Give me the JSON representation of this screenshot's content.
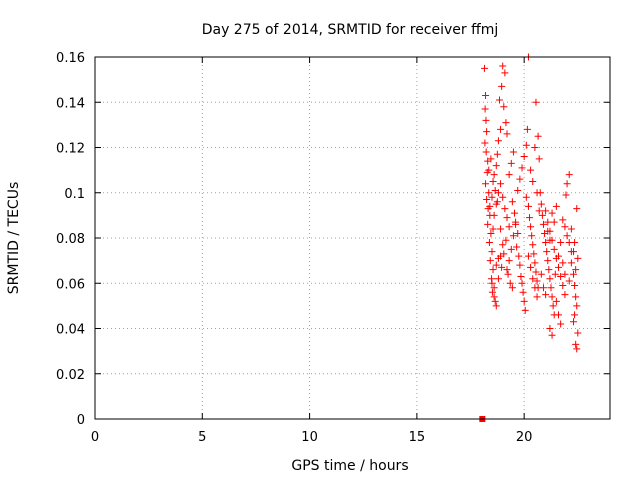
{
  "chart_data": {
    "type": "scatter",
    "title": "Day 275 of 2014, SRMTID for receiver ffmj",
    "xlabel": "GPS time / hours",
    "ylabel": "SRMTID / TECUs",
    "xlim": [
      0,
      24
    ],
    "ylim": [
      0,
      0.16
    ],
    "x_ticks": [
      0,
      5,
      10,
      15,
      20
    ],
    "x_tick_labels": [
      "0",
      "5",
      "10",
      "15",
      "20"
    ],
    "y_ticks": [
      0,
      0.02,
      0.04,
      0.06,
      0.08,
      0.1,
      0.12,
      0.14,
      0.16
    ],
    "y_tick_labels": [
      "0",
      "0.02",
      "0.04",
      "0.06",
      "0.08",
      "0.1",
      "0.12",
      "0.14",
      "0.16"
    ],
    "grid": true,
    "marker": "+",
    "color": "#ff0000",
    "zero_marker": {
      "x": 18.05,
      "y": 0
    },
    "points": [
      [
        18.15,
        0.155
      ],
      [
        18.2,
        0.143
      ],
      [
        18.18,
        0.137
      ],
      [
        18.22,
        0.132
      ],
      [
        18.25,
        0.127
      ],
      [
        18.17,
        0.122
      ],
      [
        18.23,
        0.118
      ],
      [
        18.3,
        0.114
      ],
      [
        18.28,
        0.109
      ],
      [
        18.2,
        0.104
      ],
      [
        18.35,
        0.1
      ],
      [
        18.25,
        0.097
      ],
      [
        18.32,
        0.093
      ],
      [
        18.4,
        0.09
      ],
      [
        18.3,
        0.086
      ],
      [
        18.45,
        0.082
      ],
      [
        18.38,
        0.078
      ],
      [
        18.5,
        0.074
      ],
      [
        18.42,
        0.07
      ],
      [
        18.55,
        0.066
      ],
      [
        18.48,
        0.062
      ],
      [
        18.6,
        0.058
      ],
      [
        18.52,
        0.056
      ],
      [
        18.65,
        0.052
      ],
      [
        18.7,
        0.05
      ],
      [
        18.4,
        0.094
      ],
      [
        18.5,
        0.098
      ],
      [
        18.6,
        0.108
      ],
      [
        18.7,
        0.112
      ],
      [
        18.55,
        0.084
      ],
      [
        18.75,
        0.117
      ],
      [
        18.8,
        0.123
      ],
      [
        18.9,
        0.128
      ],
      [
        18.85,
        0.141
      ],
      [
        18.95,
        0.147
      ],
      [
        19.0,
        0.156
      ],
      [
        19.1,
        0.153
      ],
      [
        19.05,
        0.138
      ],
      [
        19.15,
        0.131
      ],
      [
        19.2,
        0.126
      ],
      [
        18.9,
        0.104
      ],
      [
        19.0,
        0.098
      ],
      [
        19.1,
        0.093
      ],
      [
        19.2,
        0.089
      ],
      [
        19.3,
        0.085
      ],
      [
        18.8,
        0.071
      ],
      [
        18.95,
        0.067
      ],
      [
        19.05,
        0.073
      ],
      [
        19.15,
        0.079
      ],
      [
        19.25,
        0.064
      ],
      [
        19.35,
        0.06
      ],
      [
        19.45,
        0.058
      ],
      [
        19.3,
        0.108
      ],
      [
        19.4,
        0.113
      ],
      [
        19.5,
        0.118
      ],
      [
        19.45,
        0.096
      ],
      [
        19.55,
        0.091
      ],
      [
        19.6,
        0.087
      ],
      [
        19.7,
        0.082
      ],
      [
        19.65,
        0.076
      ],
      [
        19.75,
        0.072
      ],
      [
        19.8,
        0.068
      ],
      [
        19.85,
        0.063
      ],
      [
        19.9,
        0.06
      ],
      [
        19.95,
        0.056
      ],
      [
        20.0,
        0.052
      ],
      [
        20.05,
        0.048
      ],
      [
        19.7,
        0.101
      ],
      [
        19.8,
        0.106
      ],
      [
        19.9,
        0.111
      ],
      [
        20.0,
        0.116
      ],
      [
        20.1,
        0.121
      ],
      [
        20.15,
        0.128
      ],
      [
        20.2,
        0.16
      ],
      [
        20.1,
        0.098
      ],
      [
        20.2,
        0.094
      ],
      [
        20.25,
        0.089
      ],
      [
        20.3,
        0.085
      ],
      [
        20.35,
        0.081
      ],
      [
        20.4,
        0.077
      ],
      [
        20.45,
        0.073
      ],
      [
        20.5,
        0.069
      ],
      [
        20.55,
        0.065
      ],
      [
        20.6,
        0.061
      ],
      [
        20.65,
        0.058
      ],
      [
        20.3,
        0.11
      ],
      [
        20.4,
        0.105
      ],
      [
        20.5,
        0.12
      ],
      [
        20.55,
        0.14
      ],
      [
        20.65,
        0.125
      ],
      [
        20.7,
        0.115
      ],
      [
        20.75,
        0.1
      ],
      [
        20.8,
        0.095
      ],
      [
        20.85,
        0.09
      ],
      [
        20.9,
        0.086
      ],
      [
        20.95,
        0.082
      ],
      [
        21.0,
        0.078
      ],
      [
        21.05,
        0.074
      ],
      [
        21.1,
        0.07
      ],
      [
        21.15,
        0.066
      ],
      [
        21.2,
        0.062
      ],
      [
        21.25,
        0.058
      ],
      [
        21.3,
        0.054
      ],
      [
        21.35,
        0.05
      ],
      [
        21.4,
        0.046
      ],
      [
        21.0,
        0.092
      ],
      [
        21.1,
        0.087
      ],
      [
        21.2,
        0.083
      ],
      [
        21.3,
        0.079
      ],
      [
        21.4,
        0.075
      ],
      [
        21.5,
        0.071
      ],
      [
        21.6,
        0.067
      ],
      [
        21.7,
        0.063
      ],
      [
        21.8,
        0.059
      ],
      [
        21.9,
        0.055
      ],
      [
        21.2,
        0.04
      ],
      [
        21.3,
        0.037
      ],
      [
        21.5,
        0.052
      ],
      [
        21.6,
        0.046
      ],
      [
        21.7,
        0.042
      ],
      [
        21.8,
        0.088
      ],
      [
        21.9,
        0.085
      ],
      [
        22.0,
        0.081
      ],
      [
        22.1,
        0.078
      ],
      [
        22.2,
        0.074
      ],
      [
        22.0,
        0.104
      ],
      [
        22.1,
        0.108
      ],
      [
        21.95,
        0.099
      ],
      [
        22.2,
        0.069
      ],
      [
        22.3,
        0.064
      ],
      [
        22.35,
        0.059
      ],
      [
        22.4,
        0.054
      ],
      [
        22.45,
        0.05
      ],
      [
        22.35,
        0.046
      ],
      [
        22.3,
        0.043
      ],
      [
        22.4,
        0.033
      ],
      [
        22.45,
        0.031
      ],
      [
        22.5,
        0.038
      ],
      [
        22.35,
        0.078
      ],
      [
        22.45,
        0.093
      ],
      [
        22.5,
        0.071
      ],
      [
        22.4,
        0.066
      ],
      [
        22.3,
        0.074
      ],
      [
        22.2,
        0.084
      ],
      [
        22.1,
        0.061
      ],
      [
        21.5,
        0.094
      ],
      [
        21.6,
        0.072
      ],
      [
        21.7,
        0.078
      ],
      [
        21.8,
        0.069
      ],
      [
        21.9,
        0.064
      ],
      [
        20.6,
        0.1
      ],
      [
        20.7,
        0.092
      ],
      [
        20.8,
        0.064
      ],
      [
        20.9,
        0.058
      ],
      [
        21.0,
        0.055
      ],
      [
        19.2,
        0.066
      ],
      [
        19.3,
        0.07
      ],
      [
        19.4,
        0.075
      ],
      [
        19.5,
        0.081
      ],
      [
        19.6,
        0.086
      ],
      [
        18.6,
        0.09
      ],
      [
        18.7,
        0.095
      ],
      [
        18.8,
        0.1
      ],
      [
        18.9,
        0.084
      ],
      [
        19.0,
        0.077
      ],
      [
        18.5,
        0.06
      ],
      [
        18.6,
        0.054
      ],
      [
        18.7,
        0.068
      ],
      [
        18.8,
        0.062
      ],
      [
        18.9,
        0.072
      ],
      [
        18.35,
        0.11
      ],
      [
        18.45,
        0.115
      ],
      [
        18.55,
        0.105
      ],
      [
        18.65,
        0.101
      ],
      [
        18.75,
        0.096
      ],
      [
        20.2,
        0.072
      ],
      [
        20.3,
        0.067
      ],
      [
        20.4,
        0.062
      ],
      [
        20.5,
        0.058
      ],
      [
        20.6,
        0.054
      ],
      [
        21.1,
        0.083
      ],
      [
        21.2,
        0.079
      ],
      [
        21.3,
        0.091
      ],
      [
        21.4,
        0.087
      ],
      [
        21.45,
        0.064
      ]
    ]
  }
}
